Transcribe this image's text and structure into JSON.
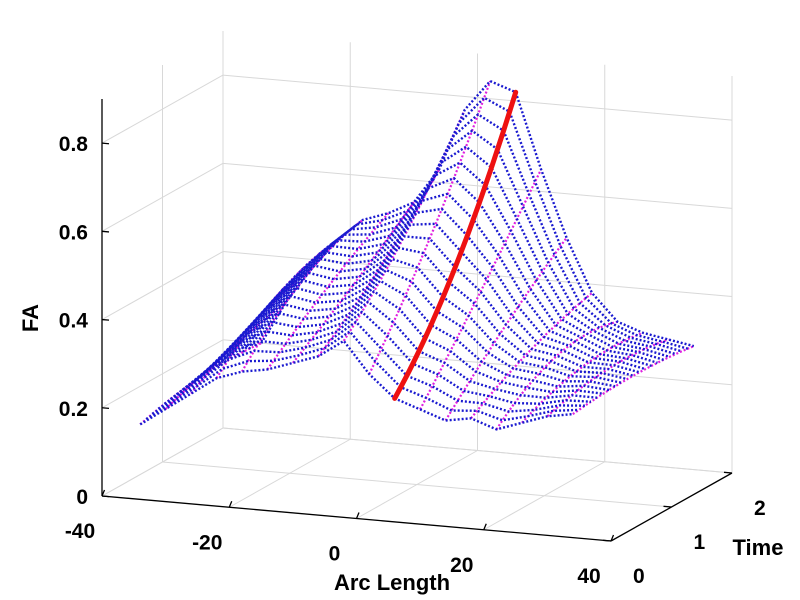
{
  "chart_data": {
    "type": "surface3d",
    "title": "",
    "xlabel": "Arc Length",
    "ylabel": "Time",
    "zlabel": "FA",
    "xlim": [
      -40,
      40
    ],
    "ylim": [
      0,
      2
    ],
    "zlim": [
      0,
      0.9
    ],
    "x_ticks": [
      "-40",
      "-20",
      "0",
      "20",
      "40"
    ],
    "y_ticks": [
      "0",
      "1",
      "2"
    ],
    "z_ticks": [
      "0",
      "0.2",
      "0.4",
      "0.6",
      "0.8"
    ],
    "grid": true,
    "mesh_colors": {
      "arc_lines": "#1a1ad0",
      "time_lines": "#e020e0",
      "highlight": "#ee1111"
    },
    "x": [
      -34,
      -30,
      -26,
      -22,
      -18,
      -14,
      -10,
      -6,
      -2,
      2,
      6,
      10,
      14,
      18,
      22,
      26,
      30,
      34
    ],
    "t": [
      0,
      0.1,
      0.2,
      0.3,
      0.4,
      0.5,
      0.6,
      0.7,
      0.8,
      0.9,
      1.0,
      1.1,
      1.2,
      1.3,
      1.4,
      1.5,
      1.6,
      1.7,
      1.8,
      1.9,
      2.0
    ],
    "fa_at_t0": [
      0.17,
      0.21,
      0.25,
      0.29,
      0.31,
      0.32,
      0.34,
      0.36,
      0.4,
      0.33,
      0.28,
      0.26,
      0.24,
      0.25,
      0.23,
      0.25,
      0.27,
      0.28
    ],
    "fa_at_t1": [
      0.2,
      0.26,
      0.33,
      0.4,
      0.44,
      0.43,
      0.44,
      0.48,
      0.56,
      0.56,
      0.5,
      0.45,
      0.38,
      0.33,
      0.32,
      0.3,
      0.3,
      0.29
    ],
    "fa_at_t2": [
      0.2,
      0.3,
      0.38,
      0.45,
      0.5,
      0.52,
      0.55,
      0.63,
      0.77,
      0.84,
      0.82,
      0.65,
      0.5,
      0.38,
      0.32,
      0.3,
      0.29,
      0.28
    ],
    "highlight_x": 6
  }
}
